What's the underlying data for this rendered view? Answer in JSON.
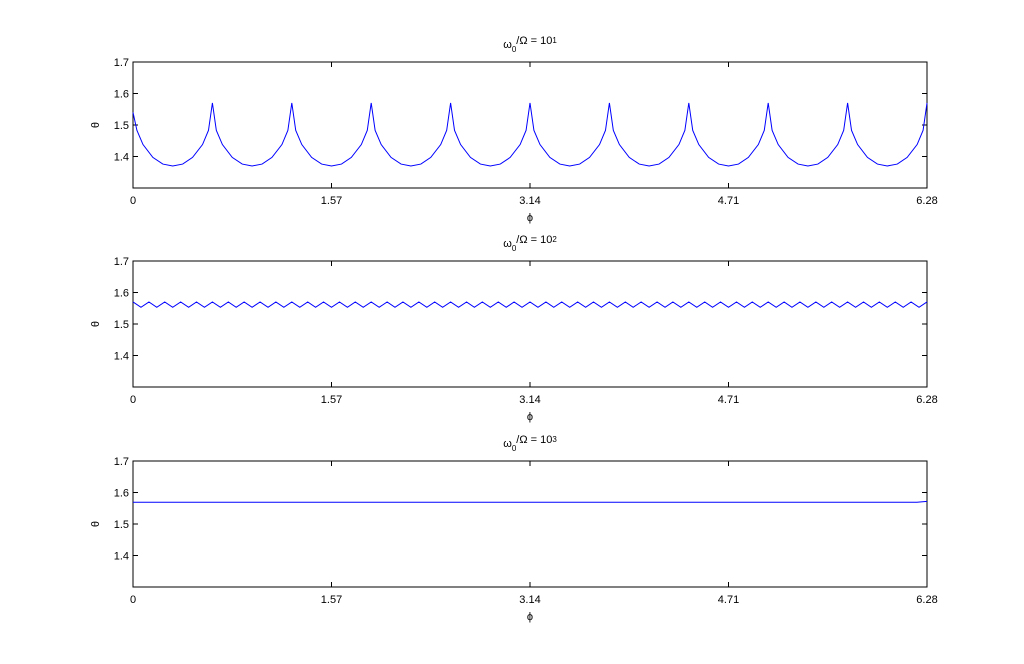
{
  "chart_data": [
    {
      "type": "line",
      "title": [
        "ω",
        "0",
        "/Ω = 10",
        "1"
      ],
      "xlabel": "ϕ",
      "ylabel": "θ",
      "x": [
        0,
        0.031,
        0.079,
        0.157,
        0.236,
        0.314,
        0.393,
        0.471,
        0.55,
        0.597,
        0.628,
        0.659,
        0.707,
        0.785,
        0.864,
        0.942,
        1.021,
        1.099,
        1.178,
        1.225,
        1.256,
        1.287,
        1.335,
        1.413,
        1.492,
        1.57,
        1.649,
        1.727,
        1.806,
        1.853,
        1.884,
        1.915,
        1.963,
        2.041,
        2.12,
        2.198,
        2.277,
        2.355,
        2.434,
        2.481,
        2.512,
        2.543,
        2.591,
        2.669,
        2.748,
        2.826,
        2.905,
        2.983,
        3.062,
        3.109,
        3.14,
        3.171,
        3.219,
        3.297,
        3.376,
        3.454,
        3.533,
        3.611,
        3.69,
        3.737,
        3.768,
        3.799,
        3.847,
        3.925,
        4.004,
        4.082,
        4.161,
        4.239,
        4.318,
        4.365,
        4.396,
        4.427,
        4.475,
        4.553,
        4.632,
        4.71,
        4.789,
        4.867,
        4.946,
        4.993,
        5.024,
        5.055,
        5.103,
        5.181,
        5.26,
        5.338,
        5.417,
        5.495,
        5.574,
        5.621,
        5.652,
        5.683,
        5.731,
        5.809,
        5.888,
        5.966,
        6.045,
        6.123,
        6.202,
        6.249,
        6.28
      ],
      "series": [
        {
          "color": "#0000ff",
          "values": [
            1.54,
            1.483,
            1.438,
            1.397,
            1.376,
            1.37,
            1.376,
            1.397,
            1.438,
            1.483,
            1.57,
            1.483,
            1.438,
            1.397,
            1.376,
            1.37,
            1.376,
            1.397,
            1.438,
            1.483,
            1.57,
            1.483,
            1.438,
            1.397,
            1.376,
            1.37,
            1.376,
            1.397,
            1.438,
            1.483,
            1.57,
            1.483,
            1.438,
            1.397,
            1.376,
            1.37,
            1.376,
            1.397,
            1.438,
            1.483,
            1.57,
            1.483,
            1.438,
            1.397,
            1.376,
            1.37,
            1.376,
            1.397,
            1.438,
            1.483,
            1.57,
            1.483,
            1.438,
            1.397,
            1.376,
            1.37,
            1.376,
            1.397,
            1.438,
            1.483,
            1.57,
            1.483,
            1.438,
            1.397,
            1.376,
            1.37,
            1.376,
            1.397,
            1.438,
            1.483,
            1.57,
            1.483,
            1.438,
            1.397,
            1.376,
            1.37,
            1.376,
            1.397,
            1.438,
            1.483,
            1.57,
            1.483,
            1.438,
            1.397,
            1.376,
            1.37,
            1.376,
            1.397,
            1.438,
            1.483,
            1.57,
            1.483,
            1.438,
            1.397,
            1.376,
            1.37,
            1.376,
            1.397,
            1.438,
            1.483,
            1.57
          ]
        }
      ],
      "xlim": [
        0,
        6.28
      ],
      "ylim": [
        1.3,
        1.7
      ],
      "xticks": [
        0,
        1.57,
        3.14,
        4.71,
        6.28
      ],
      "yticks": [
        1.4,
        1.5,
        1.6,
        1.7
      ]
    },
    {
      "type": "line",
      "title": [
        "ω",
        "0",
        "/Ω = 10",
        "2"
      ],
      "xlabel": "ϕ",
      "ylabel": "θ",
      "x": [
        0,
        0.063,
        0.126,
        0.188,
        0.251,
        0.314,
        0.377,
        0.44,
        0.502,
        0.565,
        0.628,
        0.691,
        0.754,
        0.816,
        0.879,
        0.942,
        1.005,
        1.068,
        1.13,
        1.193,
        1.256,
        1.319,
        1.382,
        1.444,
        1.507,
        1.57,
        1.633,
        1.696,
        1.758,
        1.821,
        1.884,
        1.947,
        2.01,
        2.072,
        2.135,
        2.198,
        2.261,
        2.324,
        2.386,
        2.449,
        2.512,
        2.575,
        2.638,
        2.7,
        2.763,
        2.826,
        2.889,
        2.952,
        3.014,
        3.077,
        3.14,
        3.203,
        3.266,
        3.328,
        3.391,
        3.454,
        3.517,
        3.58,
        3.642,
        3.705,
        3.768,
        3.831,
        3.894,
        3.956,
        4.019,
        4.082,
        4.145,
        4.208,
        4.27,
        4.333,
        4.396,
        4.459,
        4.522,
        4.584,
        4.647,
        4.71,
        4.773,
        4.836,
        4.898,
        4.961,
        5.024,
        5.087,
        5.15,
        5.212,
        5.275,
        5.338,
        5.401,
        5.464,
        5.526,
        5.589,
        5.652,
        5.715,
        5.778,
        5.84,
        5.903,
        5.966,
        6.029,
        6.092,
        6.154,
        6.217,
        6.28
      ],
      "series": [
        {
          "color": "#0000ff",
          "values": [
            1.57,
            1.553,
            1.57,
            1.553,
            1.57,
            1.553,
            1.57,
            1.553,
            1.57,
            1.553,
            1.57,
            1.553,
            1.57,
            1.553,
            1.57,
            1.553,
            1.57,
            1.553,
            1.57,
            1.553,
            1.57,
            1.553,
            1.57,
            1.553,
            1.57,
            1.553,
            1.57,
            1.553,
            1.57,
            1.553,
            1.57,
            1.553,
            1.57,
            1.553,
            1.57,
            1.553,
            1.57,
            1.553,
            1.57,
            1.553,
            1.57,
            1.553,
            1.57,
            1.553,
            1.57,
            1.553,
            1.57,
            1.553,
            1.57,
            1.553,
            1.57,
            1.553,
            1.57,
            1.553,
            1.57,
            1.553,
            1.57,
            1.553,
            1.57,
            1.553,
            1.57,
            1.553,
            1.57,
            1.553,
            1.57,
            1.553,
            1.57,
            1.553,
            1.57,
            1.553,
            1.57,
            1.553,
            1.57,
            1.553,
            1.57,
            1.553,
            1.57,
            1.553,
            1.57,
            1.553,
            1.57,
            1.553,
            1.57,
            1.553,
            1.57,
            1.553,
            1.57,
            1.553,
            1.57,
            1.553,
            1.57,
            1.553,
            1.57,
            1.553,
            1.57,
            1.553,
            1.57,
            1.553,
            1.57,
            1.553,
            1.57
          ]
        }
      ],
      "xlim": [
        0,
        6.28
      ],
      "ylim": [
        1.3,
        1.7
      ],
      "xticks": [
        0,
        1.57,
        3.14,
        4.71,
        6.28
      ],
      "yticks": [
        1.4,
        1.5,
        1.6,
        1.7
      ]
    },
    {
      "type": "line",
      "title": [
        "ω",
        "0",
        "/Ω = 10",
        "3"
      ],
      "xlabel": "ϕ",
      "ylabel": "θ",
      "x": [
        0,
        6.2,
        6.28
      ],
      "series": [
        {
          "color": "#0000ff",
          "values": [
            1.569,
            1.569,
            1.572
          ]
        }
      ],
      "xlim": [
        0,
        6.28
      ],
      "ylim": [
        1.3,
        1.7
      ],
      "xticks": [
        0,
        1.57,
        3.14,
        4.71,
        6.28
      ],
      "yticks": [
        1.4,
        1.5,
        1.6,
        1.7
      ]
    }
  ]
}
